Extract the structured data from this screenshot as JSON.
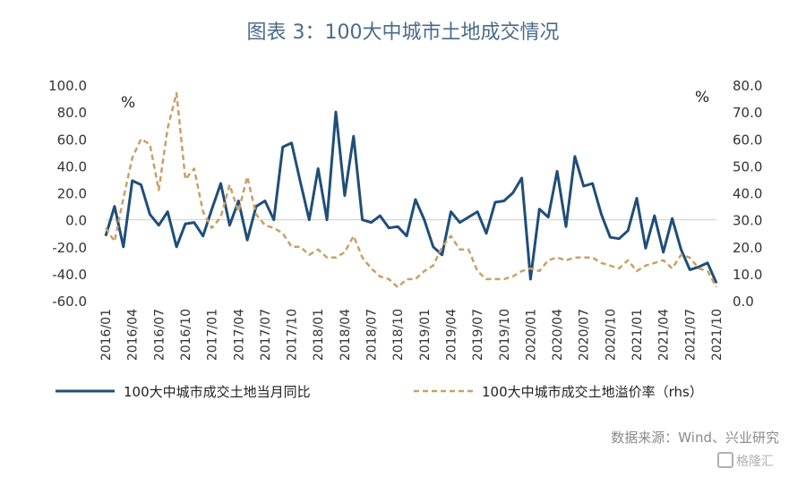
{
  "title": "图表 3：100大中城市土地成交情况",
  "source": "数据来源：Wind、兴业研究",
  "watermark": "格隆汇",
  "colors": {
    "series1": "#1f4e79",
    "series2": "#c9a066",
    "title": "#4a6b8a"
  },
  "chart_data": {
    "type": "line",
    "x": [
      "2016/01",
      "2016/02",
      "2016/03",
      "2016/04",
      "2016/05",
      "2016/06",
      "2016/07",
      "2016/08",
      "2016/09",
      "2016/10",
      "2016/11",
      "2016/12",
      "2017/01",
      "2017/02",
      "2017/03",
      "2017/04",
      "2017/05",
      "2017/06",
      "2017/07",
      "2017/08",
      "2017/09",
      "2017/10",
      "2017/11",
      "2017/12",
      "2018/01",
      "2018/02",
      "2018/03",
      "2018/04",
      "2018/05",
      "2018/06",
      "2018/07",
      "2018/08",
      "2018/09",
      "2018/10",
      "2018/11",
      "2018/12",
      "2019/01",
      "2019/02",
      "2019/03",
      "2019/04",
      "2019/05",
      "2019/06",
      "2019/07",
      "2019/08",
      "2019/09",
      "2019/10",
      "2019/11",
      "2019/12",
      "2020/01",
      "2020/02",
      "2020/03",
      "2020/04",
      "2020/05",
      "2020/06",
      "2020/07",
      "2020/08",
      "2020/09",
      "2020/10",
      "2020/11",
      "2020/12",
      "2021/01",
      "2021/02",
      "2021/03",
      "2021/04",
      "2021/05",
      "2021/06",
      "2021/07",
      "2021/08",
      "2021/09",
      "2021/10"
    ],
    "xticks": [
      "2016/01",
      "2016/04",
      "2016/07",
      "2016/10",
      "2017/01",
      "2017/04",
      "2017/07",
      "2017/10",
      "2018/01",
      "2018/04",
      "2018/07",
      "2018/10",
      "2019/01",
      "2019/04",
      "2019/07",
      "2019/10",
      "2020/01",
      "2020/04",
      "2020/07",
      "2020/10",
      "2021/01",
      "2021/04",
      "2021/07",
      "2021/10"
    ],
    "left_axis": {
      "unit": "%",
      "ylim": [
        -60,
        100
      ],
      "ticks": [
        "100.0",
        "80.0",
        "60.0",
        "40.0",
        "20.0",
        "0.0",
        "-20.0",
        "-40.0",
        "-60.0"
      ]
    },
    "right_axis": {
      "unit": "%",
      "ylim": [
        0,
        80
      ],
      "ticks": [
        "80.0",
        "70.0",
        "60.0",
        "50.0",
        "40.0",
        "30.0",
        "20.0",
        "10.0",
        "0.0"
      ]
    },
    "series": [
      {
        "name": "100大中城市成交土地当月同比",
        "axis": "left",
        "style": "solid",
        "values": [
          -12,
          10,
          -20,
          29,
          26,
          4,
          -4,
          6,
          -20,
          -3,
          -2,
          -12,
          8,
          27,
          -4,
          14,
          -15,
          10,
          14,
          0,
          54,
          57,
          28,
          0,
          38,
          0,
          80,
          18,
          62,
          0,
          -2,
          3,
          -6,
          -5,
          -12,
          15,
          0,
          -20,
          -26,
          6,
          -2,
          2,
          6,
          -10,
          13,
          14,
          20,
          31,
          -44,
          8,
          2,
          36,
          -5,
          47,
          25,
          27,
          4,
          -13,
          -14,
          -8,
          16,
          -21,
          3,
          -24,
          1,
          -22,
          -37,
          -35,
          -32,
          -47
        ]
      },
      {
        "name": "100大中城市成交土地溢价率（rhs）",
        "axis": "right",
        "style": "dashed",
        "values": [
          27,
          22,
          38,
          53,
          60,
          58,
          41,
          64,
          77,
          45,
          49,
          33,
          27,
          31,
          43,
          33,
          46,
          32,
          28,
          27,
          25,
          20,
          20,
          17,
          19,
          16,
          16,
          18,
          24,
          16,
          12,
          9,
          8,
          5,
          8,
          8,
          11,
          13,
          20,
          24,
          19,
          19,
          11,
          8,
          8,
          8,
          9,
          11,
          12,
          11,
          15,
          16,
          15,
          16,
          16,
          16,
          14,
          13,
          12,
          15,
          11,
          13,
          14,
          15,
          12,
          17,
          16,
          12,
          11,
          5
        ]
      }
    ]
  }
}
